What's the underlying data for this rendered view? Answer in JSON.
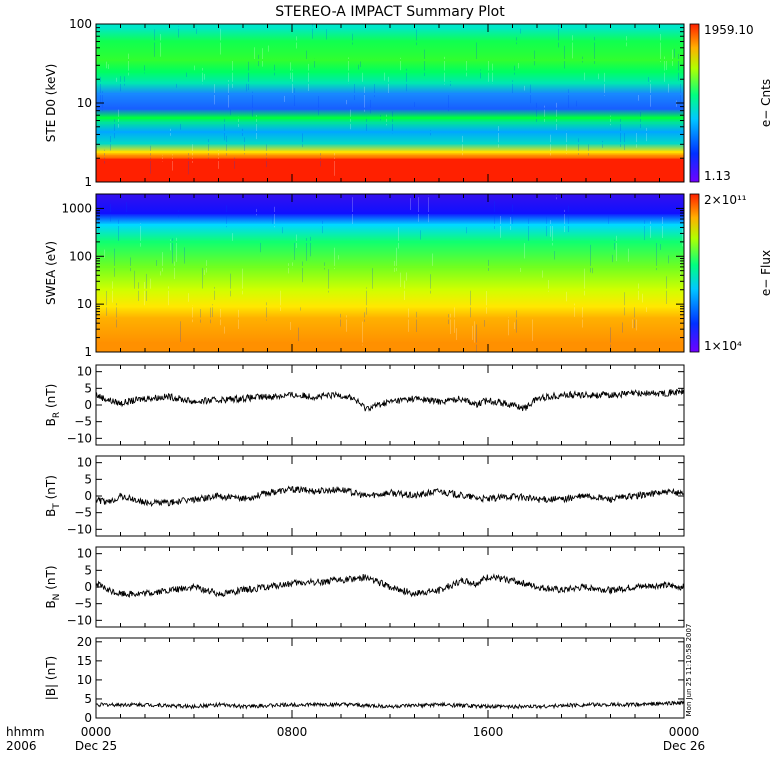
{
  "title": "STEREO-A IMPACT Summary Plot",
  "stamp": "Mon Jun 25 11:10:58 2007",
  "chart_data": [
    {
      "type": "heatmap",
      "ylabel": "STE D0 (keV)",
      "y_scale": "log",
      "ylim": [
        1,
        100
      ],
      "y_ticks": [
        "1",
        "10",
        "100"
      ],
      "colorbar_label": "e− Cnts",
      "colorbar_max": "1959.10",
      "colorbar_min": "1.13",
      "bands": [
        {
          "y": 1.9,
          "color": "#ff2000"
        },
        {
          "y": 2.1,
          "color": "#ff8000"
        },
        {
          "y": 2.4,
          "color": "#ffe000"
        },
        {
          "y": 3.1,
          "color": "#00d8c8"
        },
        {
          "y": 4.3,
          "color": "#00a8ff"
        },
        {
          "y": 5.6,
          "color": "#00e0a0"
        },
        {
          "y": 6.5,
          "color": "#00ff40"
        },
        {
          "y": 8.5,
          "color": "#1860ff"
        },
        {
          "y": 13,
          "color": "#1888ff"
        },
        {
          "y": 18,
          "color": "#00e8b0"
        },
        {
          "y": 25,
          "color": "#00ff60"
        },
        {
          "y": 35,
          "color": "#30ff30"
        },
        {
          "y": 60,
          "color": "#10ff50"
        },
        {
          "y": 90,
          "color": "#00e8c8"
        }
      ]
    },
    {
      "type": "heatmap",
      "ylabel": "SWEA (eV)",
      "y_scale": "log",
      "ylim": [
        1,
        2000
      ],
      "y_ticks": [
        "1",
        "10",
        "100",
        "1000"
      ],
      "colorbar_label": "e− Flux",
      "colorbar_max": "2×10¹¹",
      "colorbar_min": "1×10⁴",
      "bands": [
        {
          "y": 1.5,
          "color": "#ff9000"
        },
        {
          "y": 5,
          "color": "#ffb000"
        },
        {
          "y": 9,
          "color": "#ffe800"
        },
        {
          "y": 20,
          "color": "#d0ff00"
        },
        {
          "y": 60,
          "color": "#70ff20"
        },
        {
          "y": 200,
          "color": "#10ff70"
        },
        {
          "y": 450,
          "color": "#00d8ff"
        },
        {
          "y": 800,
          "color": "#1010ff"
        },
        {
          "y": 1800,
          "color": "#3010f0"
        }
      ]
    },
    {
      "type": "line",
      "ylabel": "B",
      "ylabel_sub": "R",
      "ylabel_unit": "(nT)",
      "ylim": [
        -12,
        12
      ],
      "y_ticks": [
        "−10",
        "−5",
        "0",
        "5",
        "10"
      ],
      "y_tick_values": [
        -10,
        -5,
        0,
        5,
        10
      ],
      "x_hours": [
        0,
        0.5,
        1,
        2,
        3,
        4,
        5,
        6,
        7,
        8,
        9,
        10,
        10.5,
        11,
        11.5,
        12,
        13,
        14,
        15,
        15.5,
        16,
        17,
        17.5,
        18,
        19,
        20,
        21,
        22,
        23,
        24
      ],
      "values": [
        3,
        1.5,
        0.5,
        2,
        2.5,
        1,
        1.5,
        2,
        2.5,
        3,
        2.5,
        3,
        2,
        -1,
        0,
        1,
        2,
        1,
        2,
        0,
        1.5,
        0,
        -1,
        2,
        3,
        3,
        3,
        3.5,
        3.5,
        4
      ]
    },
    {
      "type": "line",
      "ylabel": "B",
      "ylabel_sub": "T",
      "ylabel_unit": "(nT)",
      "ylim": [
        -12,
        12
      ],
      "y_ticks": [
        "−10",
        "−5",
        "0",
        "5",
        "10"
      ],
      "y_tick_values": [
        -10,
        -5,
        0,
        5,
        10
      ],
      "x_hours": [
        0,
        0.5,
        1,
        2,
        3,
        4,
        5,
        6,
        7,
        8,
        9,
        10,
        11,
        12,
        13,
        14,
        15,
        16,
        17,
        18,
        19,
        20,
        21,
        22,
        23,
        24
      ],
      "values": [
        -1,
        -2,
        0,
        -2,
        -2,
        -1,
        0,
        -1,
        1,
        2,
        1.5,
        2,
        0,
        1,
        0,
        1.5,
        0,
        -1,
        0,
        -1,
        -1,
        0,
        -1,
        0,
        1,
        1
      ]
    },
    {
      "type": "line",
      "ylabel": "B",
      "ylabel_sub": "N",
      "ylabel_unit": "(nT)",
      "ylim": [
        -12,
        12
      ],
      "y_ticks": [
        "−10",
        "−5",
        "0",
        "5",
        "10"
      ],
      "y_tick_values": [
        -10,
        -5,
        0,
        5,
        10
      ],
      "x_hours": [
        0,
        0.5,
        1,
        2,
        3,
        4,
        5,
        6,
        7,
        8,
        9,
        10,
        11,
        12,
        13,
        14,
        15,
        15.5,
        16,
        17,
        18,
        19,
        20,
        21,
        22,
        23,
        24
      ],
      "values": [
        1,
        -1,
        -2,
        -2,
        -1,
        0,
        -2,
        -1,
        0,
        1,
        1.5,
        2,
        3,
        0,
        -2,
        -1,
        2,
        1,
        3,
        2,
        0,
        -1,
        0,
        -1,
        0,
        0.5,
        0
      ]
    },
    {
      "type": "line",
      "ylabel": "|B|",
      "ylabel_sub": "",
      "ylabel_unit": "(nT)",
      "ylim": [
        0,
        21
      ],
      "y_ticks": [
        "0",
        "5",
        "10",
        "15",
        "20"
      ],
      "y_tick_values": [
        0,
        5,
        10,
        15,
        20
      ],
      "x_hours": [
        0,
        2,
        4,
        5,
        6,
        8,
        10,
        12,
        14,
        16,
        18,
        20,
        22,
        24
      ],
      "values": [
        3.5,
        3.5,
        3,
        3.5,
        3,
        3.5,
        3.5,
        3,
        3.5,
        3,
        3,
        3.5,
        3.5,
        4
      ]
    }
  ],
  "x_axis": {
    "row_labels": [
      "hhmm",
      "2006"
    ],
    "ticks": [
      {
        "hour": 0,
        "time": "0000",
        "date": "Dec 25"
      },
      {
        "hour": 8,
        "time": "0800",
        "date": ""
      },
      {
        "hour": 16,
        "time": "1600",
        "date": ""
      },
      {
        "hour": 24,
        "time": "0000",
        "date": "Dec 26"
      }
    ]
  }
}
